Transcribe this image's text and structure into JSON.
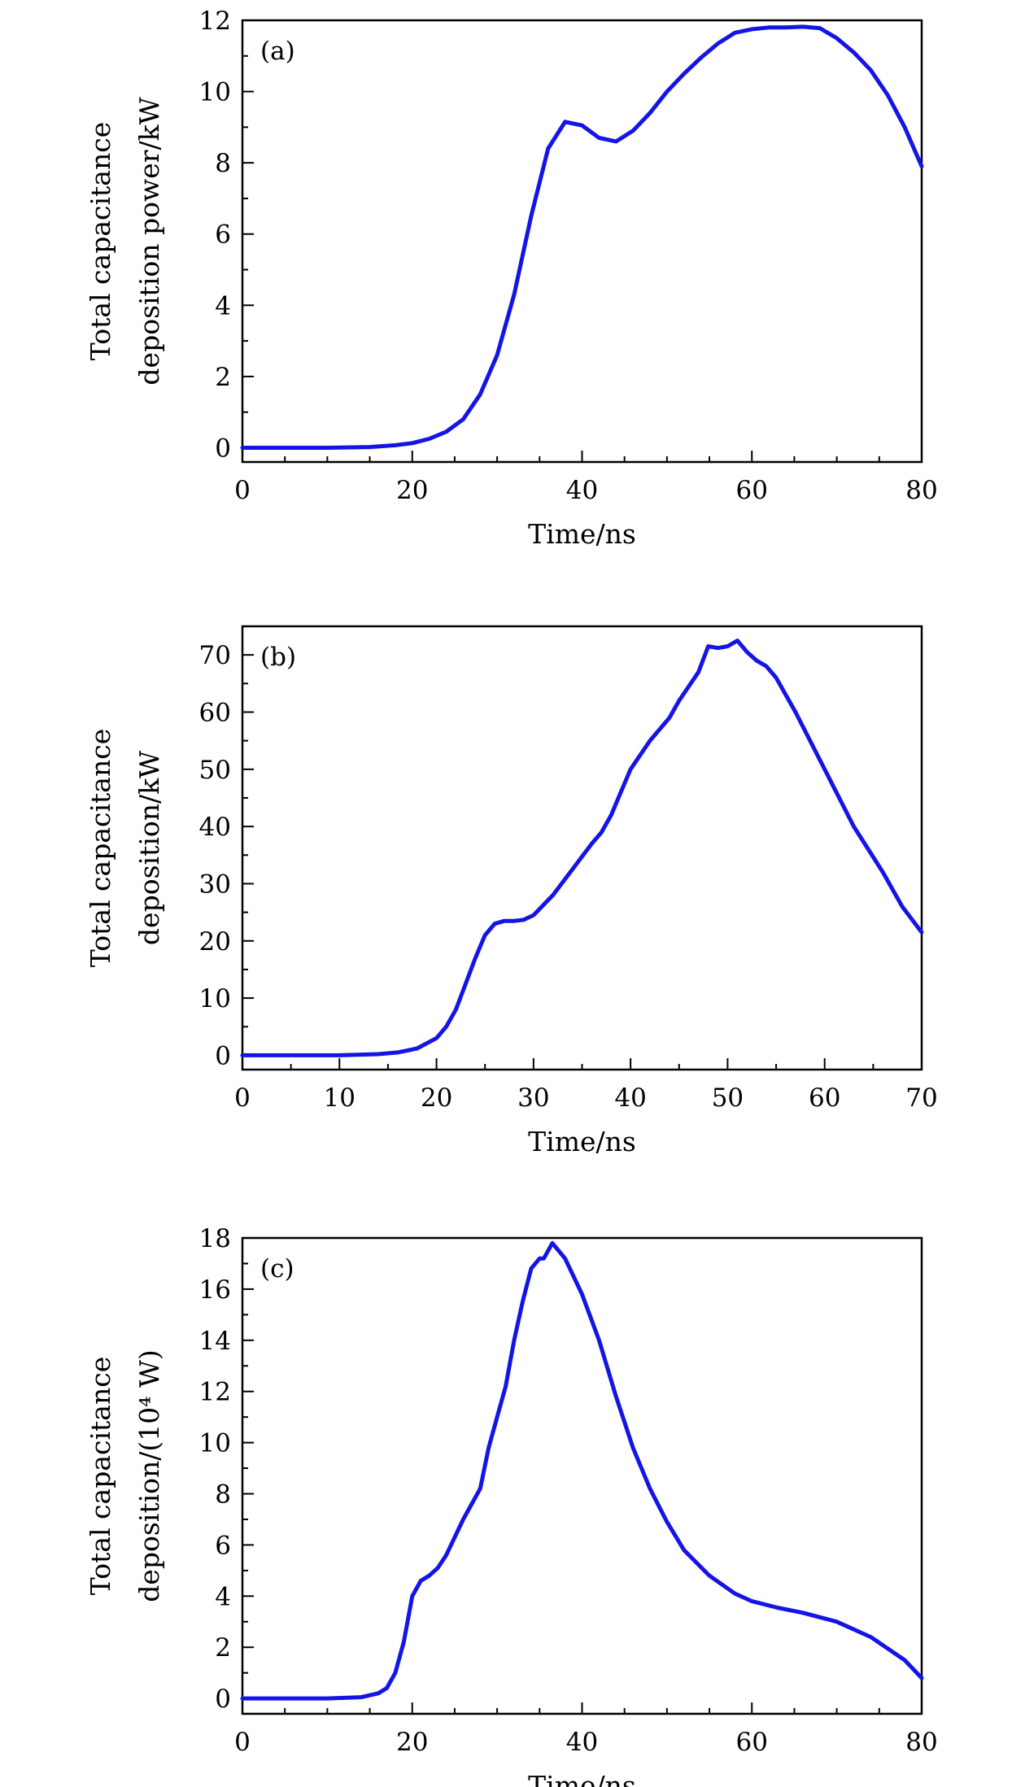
{
  "colors": {
    "line": "#1414e6",
    "axis": "#000000",
    "background": "#ffffff"
  },
  "chart_data": [
    {
      "type": "line",
      "panel_label": "(a)",
      "xlabel": "Time/ns",
      "ylabel_lines": [
        "Total capacitance",
        "deposition power/kW"
      ],
      "xlim": [
        0,
        80
      ],
      "ylim": [
        -0.4,
        12
      ],
      "x_ticks": [
        0,
        20,
        40,
        60,
        80
      ],
      "y_ticks": [
        0,
        2,
        4,
        6,
        8,
        10,
        12
      ],
      "x_minor_step": 5,
      "y_minor_step": 1,
      "grid": false,
      "series": [
        {
          "x": [
            0,
            10,
            15,
            18,
            20,
            22,
            24,
            26,
            28,
            30,
            32,
            34,
            36,
            38,
            40,
            42,
            44,
            46,
            48,
            50,
            52,
            54,
            56,
            58,
            60,
            62,
            64,
            66,
            68,
            70,
            72,
            74,
            76,
            78,
            80
          ],
          "y": [
            0,
            0,
            0.02,
            0.07,
            0.13,
            0.25,
            0.45,
            0.8,
            1.5,
            2.6,
            4.3,
            6.5,
            8.4,
            9.15,
            9.05,
            8.7,
            8.6,
            8.9,
            9.4,
            10.0,
            10.5,
            10.95,
            11.35,
            11.65,
            11.75,
            11.8,
            11.8,
            11.82,
            11.78,
            11.5,
            11.1,
            10.6,
            9.9,
            9.0,
            7.9
          ]
        }
      ]
    },
    {
      "type": "line",
      "panel_label": "(b)",
      "xlabel": "Time/ns",
      "ylabel_lines": [
        "Total capacitance",
        "deposition/kW"
      ],
      "xlim": [
        0,
        70
      ],
      "ylim": [
        -2.5,
        75
      ],
      "x_ticks": [
        0,
        10,
        20,
        30,
        40,
        50,
        60,
        70
      ],
      "y_ticks": [
        0,
        10,
        20,
        30,
        40,
        50,
        60,
        70
      ],
      "x_minor_step": 5,
      "y_minor_step": 5,
      "grid": false,
      "series": [
        {
          "x": [
            0,
            10,
            14,
            16,
            18,
            20,
            21,
            22,
            23,
            24,
            25,
            26,
            27,
            28,
            29,
            30,
            32,
            34,
            36,
            37,
            38,
            39,
            40,
            42,
            44,
            45,
            47,
            48,
            49,
            50,
            51,
            52,
            53,
            54,
            55,
            57,
            60,
            63,
            66,
            68,
            70
          ],
          "y": [
            0,
            0,
            0.2,
            0.5,
            1.2,
            3.0,
            5.0,
            8.0,
            12.5,
            17.0,
            21.0,
            23.0,
            23.5,
            23.5,
            23.7,
            24.5,
            28.0,
            32.5,
            37.0,
            39.0,
            42.0,
            46.0,
            50.0,
            55.0,
            59.0,
            62.0,
            67.0,
            71.5,
            71.2,
            71.5,
            72.5,
            70.5,
            69.0,
            68.0,
            66.0,
            60.0,
            50.0,
            40.0,
            32.0,
            26.0,
            21.5
          ]
        }
      ]
    },
    {
      "type": "line",
      "panel_label": "(c)",
      "xlabel": "Time/ns",
      "ylabel_lines": [
        "Total capacitance",
        "deposition/(10⁴ W)"
      ],
      "xlim": [
        0,
        80
      ],
      "ylim": [
        -0.6,
        18
      ],
      "x_ticks": [
        0,
        20,
        40,
        60,
        80
      ],
      "y_ticks": [
        0,
        2,
        4,
        6,
        8,
        10,
        12,
        14,
        16,
        18
      ],
      "x_minor_step": 5,
      "y_minor_step": 1,
      "grid": false,
      "series": [
        {
          "x": [
            0,
            10,
            14,
            16,
            17,
            18,
            19,
            20,
            21,
            22,
            23,
            24,
            26,
            28,
            29,
            30,
            31,
            32,
            33,
            34,
            35,
            35.5,
            36,
            36.5,
            37,
            38,
            40,
            42,
            44,
            46,
            48,
            50,
            52,
            55,
            58,
            60,
            63,
            66,
            70,
            74,
            78,
            80
          ],
          "y": [
            0,
            0,
            0.05,
            0.2,
            0.4,
            1.0,
            2.2,
            4.0,
            4.6,
            4.8,
            5.1,
            5.6,
            7.0,
            8.2,
            9.8,
            11.0,
            12.2,
            14.0,
            15.5,
            16.8,
            17.2,
            17.2,
            17.5,
            17.8,
            17.6,
            17.2,
            15.8,
            14.0,
            11.8,
            9.8,
            8.2,
            6.9,
            5.8,
            4.8,
            4.1,
            3.8,
            3.55,
            3.35,
            3.0,
            2.4,
            1.5,
            0.8
          ]
        }
      ]
    }
  ]
}
